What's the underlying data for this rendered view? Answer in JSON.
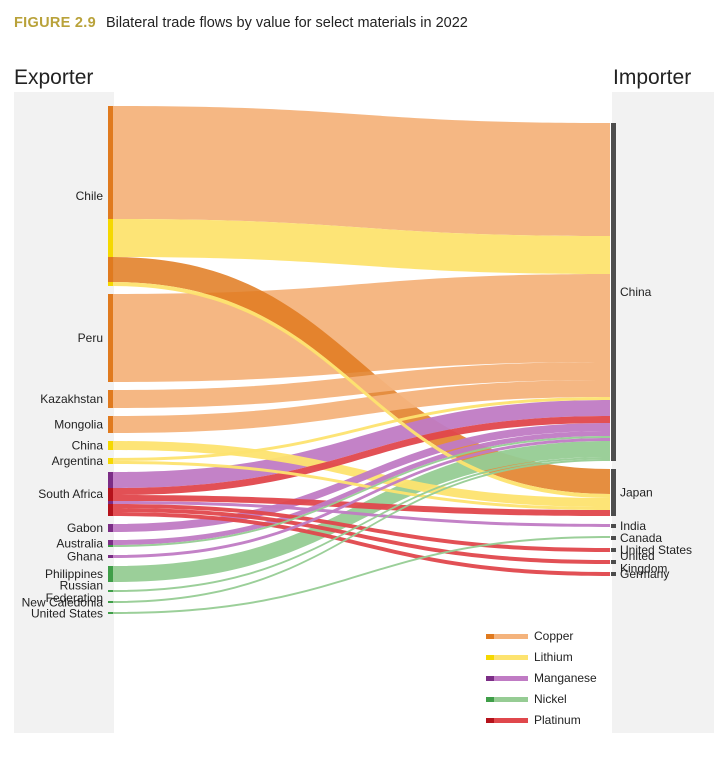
{
  "figure": {
    "number": "FIGURE 2.9",
    "title": "Bilateral trade flows by value for select materials in 2022"
  },
  "chart_data": {
    "type": "sankey",
    "left_header": "Exporter",
    "right_header": "Importer",
    "materials": [
      {
        "key": "copper",
        "name": "Copper",
        "dark": "#e07a1e",
        "light": "#f4b37c"
      },
      {
        "key": "lithium",
        "name": "Lithium",
        "dark": "#f5d800",
        "light": "#fde36f"
      },
      {
        "key": "manganese",
        "name": "Manganese",
        "dark": "#7b2d86",
        "light": "#c07bc4"
      },
      {
        "key": "nickel",
        "name": "Nickel",
        "dark": "#3f9e48",
        "light": "#96cc94"
      },
      {
        "key": "platinum",
        "name": "Platinum",
        "dark": "#b5121b",
        "light": "#e0474c"
      }
    ],
    "exporters": [
      {
        "key": "chile",
        "label": "Chile"
      },
      {
        "key": "peru",
        "label": "Peru"
      },
      {
        "key": "kazakhstan",
        "label": "Kazakhstan"
      },
      {
        "key": "mongolia",
        "label": "Mongolia"
      },
      {
        "key": "china",
        "label": "China"
      },
      {
        "key": "argentina",
        "label": "Argentina"
      },
      {
        "key": "south_africa",
        "label": "South Africa"
      },
      {
        "key": "gabon",
        "label": "Gabon"
      },
      {
        "key": "australia",
        "label": "Australia"
      },
      {
        "key": "ghana",
        "label": "Ghana"
      },
      {
        "key": "philippines",
        "label": "Philippines"
      },
      {
        "key": "russian_federation",
        "label": "Russian\nFederation"
      },
      {
        "key": "new_caledonia",
        "label": "New Caledonia"
      },
      {
        "key": "united_states",
        "label": "United States"
      }
    ],
    "importers": [
      {
        "key": "china",
        "label": "China"
      },
      {
        "key": "japan",
        "label": "Japan"
      },
      {
        "key": "india",
        "label": "India"
      },
      {
        "key": "canada",
        "label": "Canada"
      },
      {
        "key": "united_states",
        "label": "United States"
      },
      {
        "key": "united_kingdom",
        "label": "United\nKingdom"
      },
      {
        "key": "germany",
        "label": "Germany"
      }
    ],
    "flows": [
      {
        "from": "chile",
        "to": "china",
        "material": "copper",
        "value": 113
      },
      {
        "from": "chile",
        "to": "china",
        "material": "lithium",
        "value": 38
      },
      {
        "from": "chile",
        "to": "japan",
        "material": "copper",
        "value": 25
      },
      {
        "from": "chile",
        "to": "japan",
        "material": "lithium",
        "value": 4
      },
      {
        "from": "peru",
        "to": "china",
        "material": "copper",
        "value": 88
      },
      {
        "from": "kazakhstan",
        "to": "china",
        "material": "copper",
        "value": 18
      },
      {
        "from": "mongolia",
        "to": "china",
        "material": "copper",
        "value": 17
      },
      {
        "from": "china",
        "to": "japan",
        "material": "lithium",
        "value": 9
      },
      {
        "from": "argentina",
        "to": "china",
        "material": "lithium",
        "value": 3
      },
      {
        "from": "argentina",
        "to": "japan",
        "material": "lithium",
        "value": 3
      },
      {
        "from": "south_africa",
        "to": "china",
        "material": "manganese",
        "value": 16
      },
      {
        "from": "south_africa",
        "to": "china",
        "material": "platinum",
        "value": 7
      },
      {
        "from": "south_africa",
        "to": "japan",
        "material": "platinum",
        "value": 6
      },
      {
        "from": "south_africa",
        "to": "india",
        "material": "manganese",
        "value": 3
      },
      {
        "from": "south_africa",
        "to": "united_states",
        "material": "platinum",
        "value": 4
      },
      {
        "from": "south_africa",
        "to": "united_kingdom",
        "material": "platinum",
        "value": 4
      },
      {
        "from": "south_africa",
        "to": "germany",
        "material": "platinum",
        "value": 4
      },
      {
        "from": "gabon",
        "to": "china",
        "material": "manganese",
        "value": 8
      },
      {
        "from": "australia",
        "to": "china",
        "material": "manganese",
        "value": 5
      },
      {
        "from": "australia",
        "to": "china",
        "material": "nickel",
        "value": 2
      },
      {
        "from": "ghana",
        "to": "china",
        "material": "manganese",
        "value": 3
      },
      {
        "from": "philippines",
        "to": "china",
        "material": "nickel",
        "value": 16
      },
      {
        "from": "russian_federation",
        "to": "china",
        "material": "nickel",
        "value": 2
      },
      {
        "from": "new_caledonia",
        "to": "china",
        "material": "nickel",
        "value": 2
      },
      {
        "from": "united_states",
        "to": "canada",
        "material": "nickel",
        "value": 2
      }
    ]
  }
}
